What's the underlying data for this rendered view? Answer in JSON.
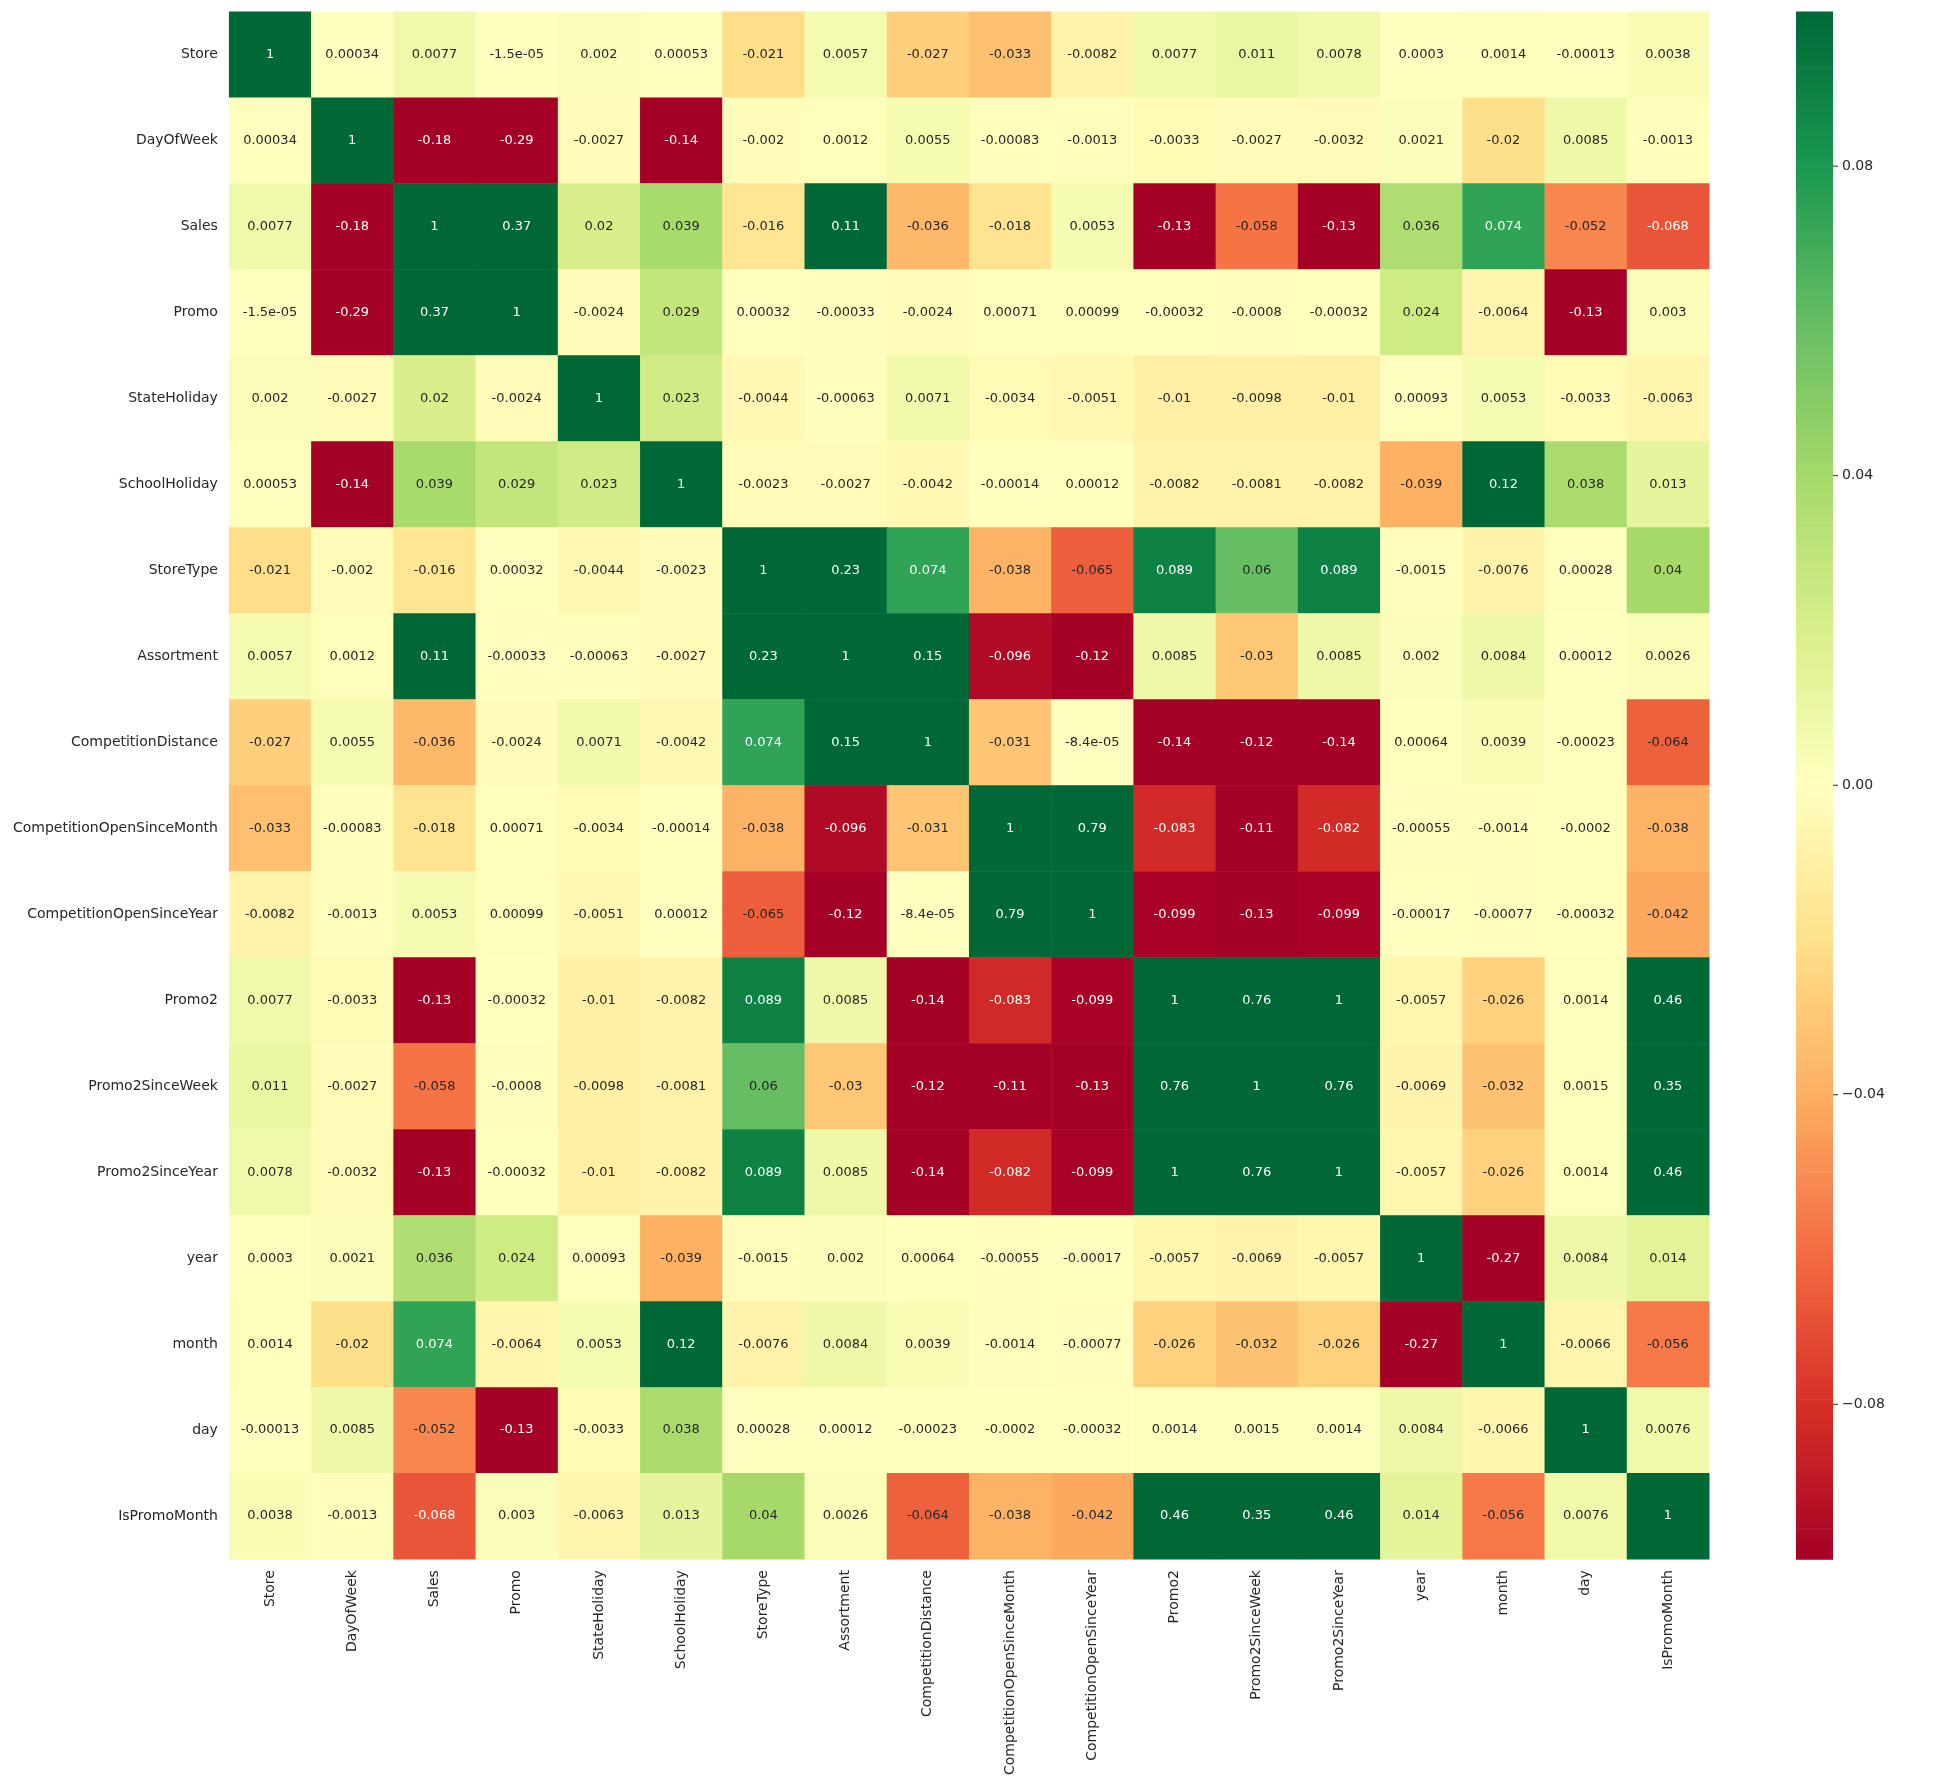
{
  "chart_data": {
    "type": "heatmap",
    "categories": [
      "Store",
      "DayOfWeek",
      "Sales",
      "Promo",
      "StateHoliday",
      "SchoolHoliday",
      "StoreType",
      "Assortment",
      "CompetitionDistance",
      "CompetitionOpenSinceMonth",
      "CompetitionOpenSinceYear",
      "Promo2",
      "Promo2SinceWeek",
      "Promo2SinceYear",
      "year",
      "month",
      "day",
      "IsPromoMonth"
    ],
    "y_categories": [
      "Store",
      "DayOfWeek",
      "Sales",
      "Promo",
      "StateHoliday",
      "SchoolHoliday",
      "StoreType",
      "Assortment",
      "CompetitionDistance",
      "CompetitionOpenSinceMonth",
      "CompetitionOpenSinceYear",
      "Promo2",
      "Promo2SinceWeek",
      "Promo2SinceYear",
      "year",
      "month",
      "day",
      "IsPromoMonth"
    ],
    "cells": [
      [
        1,
        0.00034,
        0.0077,
        -1.5e-05,
        0.002,
        0.00053,
        -0.021,
        0.0057,
        -0.027,
        -0.033,
        -0.0082,
        0.0077,
        0.011,
        0.0078,
        0.0003,
        0.0014,
        -0.00013,
        0.0038
      ],
      [
        0.00034,
        1,
        -0.18,
        -0.29,
        -0.0027,
        -0.14,
        -0.002,
        0.0012,
        0.0055,
        -0.00083,
        -0.0013,
        -0.0033,
        -0.0027,
        -0.0032,
        0.0021,
        -0.02,
        0.0085,
        -0.0013
      ],
      [
        0.0077,
        -0.18,
        1,
        0.37,
        0.02,
        0.039,
        -0.016,
        0.11,
        -0.036,
        -0.018,
        0.0053,
        -0.13,
        -0.058,
        -0.13,
        0.036,
        0.074,
        -0.052,
        -0.068
      ],
      [
        -1.5e-05,
        -0.29,
        0.37,
        1,
        -0.0024,
        0.029,
        0.00032,
        -0.00033,
        -0.0024,
        0.00071,
        0.00099,
        -0.00032,
        -0.0008,
        -0.00032,
        0.024,
        -0.0064,
        -0.13,
        0.003
      ],
      [
        0.002,
        -0.0027,
        0.02,
        -0.0024,
        1,
        0.023,
        -0.0044,
        -0.00063,
        0.0071,
        -0.0034,
        -0.0051,
        -0.01,
        -0.0098,
        -0.01,
        0.00093,
        0.0053,
        -0.0033,
        -0.0063
      ],
      [
        0.00053,
        -0.14,
        0.039,
        0.029,
        0.023,
        1,
        -0.0023,
        -0.0027,
        -0.0042,
        -0.00014,
        0.00012,
        -0.0082,
        -0.0081,
        -0.0082,
        -0.039,
        0.12,
        0.038,
        0.013
      ],
      [
        -0.021,
        -0.002,
        -0.016,
        0.00032,
        -0.0044,
        -0.0023,
        1,
        0.23,
        0.074,
        -0.038,
        -0.065,
        0.089,
        0.06,
        0.089,
        -0.0015,
        -0.0076,
        0.00028,
        0.04
      ],
      [
        0.0057,
        0.0012,
        0.11,
        -0.00033,
        -0.00063,
        -0.0027,
        0.23,
        1,
        0.15,
        -0.096,
        -0.12,
        0.0085,
        -0.03,
        0.0085,
        0.002,
        0.0084,
        0.00012,
        0.0026
      ],
      [
        -0.027,
        0.0055,
        -0.036,
        -0.0024,
        0.0071,
        -0.0042,
        0.074,
        0.15,
        1,
        -0.031,
        -8.4e-05,
        -0.14,
        -0.12,
        -0.14,
        0.00064,
        0.0039,
        -0.00023,
        -0.064
      ],
      [
        -0.033,
        -0.00083,
        -0.018,
        0.00071,
        -0.0034,
        -0.00014,
        -0.038,
        -0.096,
        -0.031,
        1,
        0.79,
        -0.083,
        -0.11,
        -0.082,
        -0.00055,
        -0.0014,
        -0.0002,
        -0.038
      ],
      [
        -0.0082,
        -0.0013,
        0.0053,
        0.00099,
        -0.0051,
        0.00012,
        -0.065,
        -0.12,
        -8.4e-05,
        0.79,
        1,
        -0.099,
        -0.13,
        -0.099,
        -0.00017,
        -0.00077,
        -0.00032,
        -0.042
      ],
      [
        0.0077,
        -0.0033,
        -0.13,
        -0.00032,
        -0.01,
        -0.0082,
        0.089,
        0.0085,
        -0.14,
        -0.083,
        -0.099,
        1,
        0.76,
        1,
        -0.0057,
        -0.026,
        0.0014,
        0.46
      ],
      [
        0.011,
        -0.0027,
        -0.058,
        -0.0008,
        -0.0098,
        -0.0081,
        0.06,
        -0.03,
        -0.12,
        -0.11,
        -0.13,
        0.76,
        1,
        0.76,
        -0.0069,
        -0.032,
        0.0015,
        0.35
      ],
      [
        0.0078,
        -0.0032,
        -0.13,
        -0.00032,
        -0.01,
        -0.0082,
        0.089,
        0.0085,
        -0.14,
        -0.082,
        -0.099,
        1,
        0.76,
        1,
        -0.0057,
        -0.026,
        0.0014,
        0.46
      ],
      [
        0.0003,
        0.0021,
        0.036,
        0.024,
        0.00093,
        -0.039,
        -0.0015,
        0.002,
        0.00064,
        -0.00055,
        -0.00017,
        -0.0057,
        -0.0069,
        -0.0057,
        1,
        -0.27,
        0.0084,
        0.014
      ],
      [
        0.0014,
        -0.02,
        0.074,
        -0.0064,
        0.0053,
        0.12,
        -0.0076,
        0.0084,
        0.0039,
        -0.0014,
        -0.00077,
        -0.026,
        -0.032,
        -0.026,
        -0.27,
        1,
        -0.0066,
        -0.056
      ],
      [
        -0.00013,
        0.0085,
        -0.052,
        -0.13,
        -0.0033,
        0.038,
        0.00028,
        0.00012,
        -0.00023,
        -0.0002,
        -0.00032,
        0.0014,
        0.0015,
        0.0014,
        0.0084,
        -0.0066,
        1,
        0.0076
      ],
      [
        0.0038,
        -0.0013,
        -0.068,
        0.003,
        -0.0063,
        0.013,
        0.04,
        0.0026,
        -0.064,
        -0.038,
        -0.042,
        0.46,
        0.35,
        0.46,
        0.014,
        -0.056,
        0.0076,
        1
      ]
    ],
    "cell_labels": [
      [
        "1",
        "0.00034",
        "0.0077",
        "-1.5e-05",
        "0.002",
        "0.00053",
        "-0.021",
        "0.0057",
        "-0.027",
        "-0.033",
        "-0.0082",
        "0.0077",
        "0.011",
        "0.0078",
        "0.0003",
        "0.0014",
        "-0.00013",
        "0.0038"
      ],
      [
        "0.00034",
        "1",
        "-0.18",
        "-0.29",
        "-0.0027",
        "-0.14",
        "-0.002",
        "0.0012",
        "0.0055",
        "-0.00083",
        "-0.0013",
        "-0.0033",
        "-0.0027",
        "-0.0032",
        "0.0021",
        "-0.02",
        "0.0085",
        "-0.0013"
      ],
      [
        "0.0077",
        "-0.18",
        "1",
        "0.37",
        "0.02",
        "0.039",
        "-0.016",
        "0.11",
        "-0.036",
        "-0.018",
        "0.0053",
        "-0.13",
        "-0.058",
        "-0.13",
        "0.036",
        "0.074",
        "-0.052",
        "-0.068"
      ],
      [
        "-1.5e-05",
        "-0.29",
        "0.37",
        "1",
        "-0.0024",
        "0.029",
        "0.00032",
        "-0.00033",
        "-0.0024",
        "0.00071",
        "0.00099",
        "-0.00032",
        "-0.0008",
        "-0.00032",
        "0.024",
        "-0.0064",
        "-0.13",
        "0.003"
      ],
      [
        "0.002",
        "-0.0027",
        "0.02",
        "-0.0024",
        "1",
        "0.023",
        "-0.0044",
        "-0.00063",
        "0.0071",
        "-0.0034",
        "-0.0051",
        "-0.01",
        "-0.0098",
        "-0.01",
        "0.00093",
        "0.0053",
        "-0.0033",
        "-0.0063"
      ],
      [
        "0.00053",
        "-0.14",
        "0.039",
        "0.029",
        "0.023",
        "1",
        "-0.0023",
        "-0.0027",
        "-0.0042",
        "-0.00014",
        "0.00012",
        "-0.0082",
        "-0.0081",
        "-0.0082",
        "-0.039",
        "0.12",
        "0.038",
        "0.013"
      ],
      [
        "-0.021",
        "-0.002",
        "-0.016",
        "0.00032",
        "-0.0044",
        "-0.0023",
        "1",
        "0.23",
        "0.074",
        "-0.038",
        "-0.065",
        "0.089",
        "0.06",
        "0.089",
        "-0.0015",
        "-0.0076",
        "0.00028",
        "0.04"
      ],
      [
        "0.0057",
        "0.0012",
        "0.11",
        "-0.00033",
        "-0.00063",
        "-0.0027",
        "0.23",
        "1",
        "0.15",
        "-0.096",
        "-0.12",
        "0.0085",
        "-0.03",
        "0.0085",
        "0.002",
        "0.0084",
        "0.00012",
        "0.0026"
      ],
      [
        "-0.027",
        "0.0055",
        "-0.036",
        "-0.0024",
        "0.0071",
        "-0.0042",
        "0.074",
        "0.15",
        "1",
        "-0.031",
        "-8.4e-05",
        "-0.14",
        "-0.12",
        "-0.14",
        "0.00064",
        "0.0039",
        "-0.00023",
        "-0.064"
      ],
      [
        "-0.033",
        "-0.00083",
        "-0.018",
        "0.00071",
        "-0.0034",
        "-0.00014",
        "-0.038",
        "-0.096",
        "-0.031",
        "1",
        "0.79",
        "-0.083",
        "-0.11",
        "-0.082",
        "-0.00055",
        "-0.0014",
        "-0.0002",
        "-0.038"
      ],
      [
        "-0.0082",
        "-0.0013",
        "0.0053",
        "0.00099",
        "-0.0051",
        "0.00012",
        "-0.065",
        "-0.12",
        "-8.4e-05",
        "0.79",
        "1",
        "-0.099",
        "-0.13",
        "-0.099",
        "-0.00017",
        "-0.00077",
        "-0.00032",
        "-0.042"
      ],
      [
        "0.0077",
        "-0.0033",
        "-0.13",
        "-0.00032",
        "-0.01",
        "-0.0082",
        "0.089",
        "0.0085",
        "-0.14",
        "-0.083",
        "-0.099",
        "1",
        "0.76",
        "1",
        "-0.0057",
        "-0.026",
        "0.0014",
        "0.46"
      ],
      [
        "0.011",
        "-0.0027",
        "-0.058",
        "-0.0008",
        "-0.0098",
        "-0.0081",
        "0.06",
        "-0.03",
        "-0.12",
        "-0.11",
        "-0.13",
        "0.76",
        "1",
        "0.76",
        "-0.0069",
        "-0.032",
        "0.0015",
        "0.35"
      ],
      [
        "0.0078",
        "-0.0032",
        "-0.13",
        "-0.00032",
        "-0.01",
        "-0.0082",
        "0.089",
        "0.0085",
        "-0.14",
        "-0.082",
        "-0.099",
        "1",
        "0.76",
        "1",
        "-0.0057",
        "-0.026",
        "0.0014",
        "0.46"
      ],
      [
        "0.0003",
        "0.0021",
        "0.036",
        "0.024",
        "0.00093",
        "-0.039",
        "-0.0015",
        "0.002",
        "0.00064",
        "-0.00055",
        "-0.00017",
        "-0.0057",
        "-0.0069",
        "-0.0057",
        "1",
        "-0.27",
        "0.0084",
        "0.014"
      ],
      [
        "0.0014",
        "-0.02",
        "0.074",
        "-0.0064",
        "0.0053",
        "0.12",
        "-0.0076",
        "0.0084",
        "0.0039",
        "-0.0014",
        "-0.00077",
        "-0.026",
        "-0.032",
        "-0.026",
        "-0.27",
        "1",
        "-0.0066",
        "-0.056"
      ],
      [
        "-0.00013",
        "0.0085",
        "-0.052",
        "-0.13",
        "-0.0033",
        "0.038",
        "0.00028",
        "0.00012",
        "-0.00023",
        "-0.0002",
        "-0.00032",
        "0.0014",
        "0.0015",
        "0.0014",
        "0.0084",
        "-0.0066",
        "1",
        "0.0076"
      ],
      [
        "0.0038",
        "-0.0013",
        "-0.068",
        "0.003",
        "-0.0063",
        "0.013",
        "0.04",
        "0.0026",
        "-0.064",
        "-0.038",
        "-0.042",
        "0.46",
        "0.35",
        "0.46",
        "0.014",
        "-0.056",
        "0.0076",
        "1"
      ]
    ],
    "clim": [
      -0.1,
      0.1
    ],
    "cticks": [
      {
        "value": -0.08,
        "label": "−0.08"
      },
      {
        "value": -0.04,
        "label": "−0.04"
      },
      {
        "value": 0,
        "label": "0.00"
      },
      {
        "value": 0.04,
        "label": "0.04"
      },
      {
        "value": 0.08,
        "label": "0.08"
      }
    ]
  }
}
